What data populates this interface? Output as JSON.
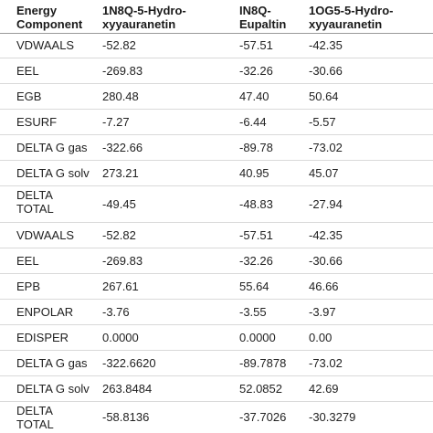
{
  "table": {
    "header": [
      [
        "Energy",
        "Component"
      ],
      [
        "1N8Q-5-Hydro-",
        "xyyauranetin"
      ],
      [
        "IN8Q-",
        "Eupaltin"
      ],
      [
        "1OG5-5-Hydro-",
        "xyyauranetin"
      ]
    ],
    "rows": [
      [
        "VDWAALS",
        "-52.82",
        "-57.51",
        "-42.35"
      ],
      [
        "EEL",
        "-269.83",
        "-32.26",
        "-30.66"
      ],
      [
        "EGB",
        "280.48",
        "47.40",
        "50.64"
      ],
      [
        "ESURF",
        "-7.27",
        "-6.44",
        "-5.57"
      ],
      [
        "DELTA G gas",
        "-322.66",
        "-89.78",
        "-73.02"
      ],
      [
        "DELTA G solv",
        "273.21",
        "40.95",
        "45.07"
      ],
      [
        [
          "DELTA",
          "TOTAL"
        ],
        "-49.45",
        "-48.83",
        "-27.94"
      ],
      [
        "VDWAALS",
        "-52.82",
        "-57.51",
        "-42.35"
      ],
      [
        "EEL",
        "-269.83",
        "-32.26",
        "-30.66"
      ],
      [
        "EPB",
        "267.61",
        "55.64",
        "46.66"
      ],
      [
        "ENPOLAR",
        "-3.76",
        "-3.55",
        "-3.97"
      ],
      [
        "EDISPER",
        "0.0000",
        "0.0000",
        "0.00"
      ],
      [
        "DELTA G gas",
        "-322.6620",
        "-89.7878",
        "-73.02"
      ],
      [
        "DELTA G solv",
        "263.8484",
        "52.0852",
        "42.69"
      ],
      [
        [
          "DELTA",
          "TOTAL"
        ],
        "-58.8136",
        "-37.7026",
        "-30.3279"
      ]
    ]
  }
}
